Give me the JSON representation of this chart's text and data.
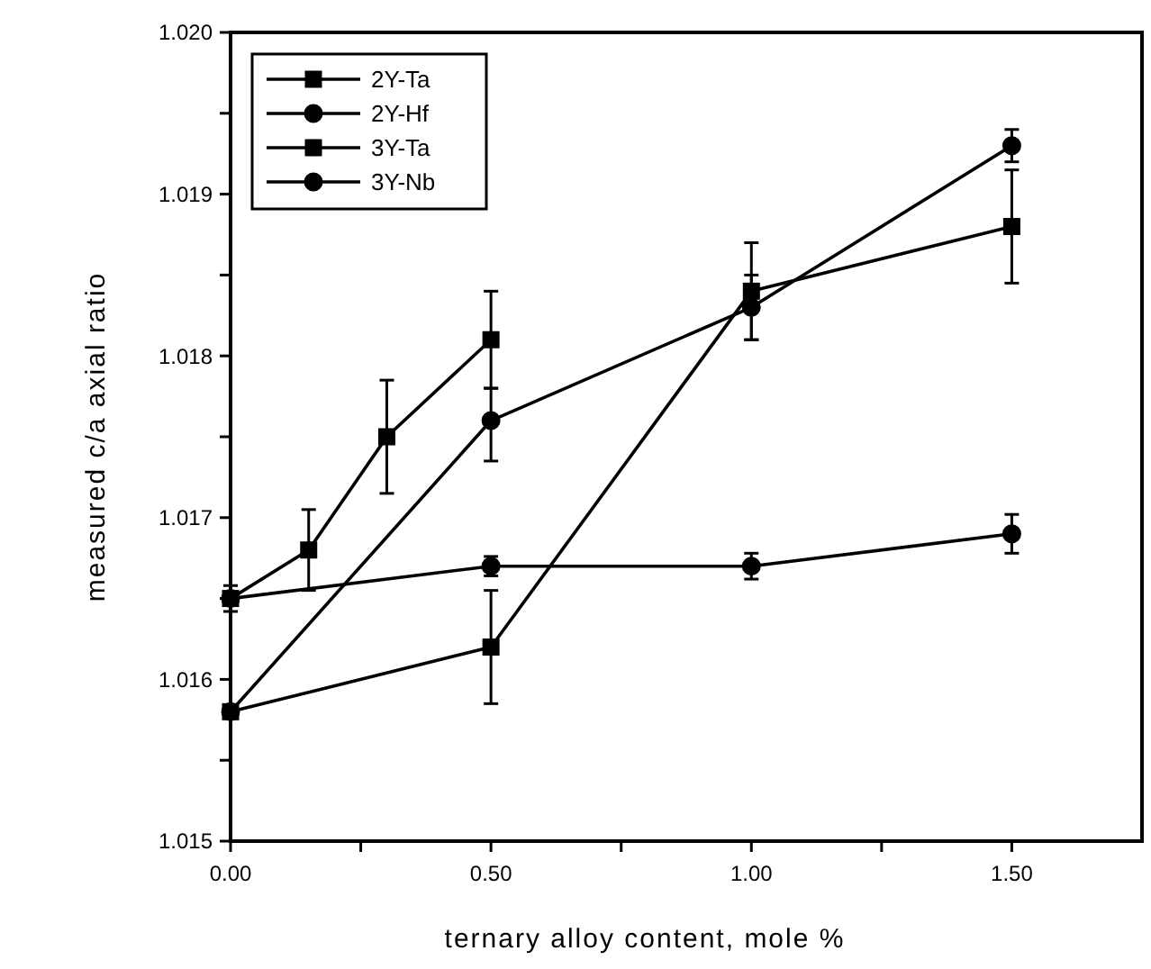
{
  "chart_data": {
    "type": "line",
    "xlabel": "ternary alloy content, mole %",
    "ylabel": "measured c/a axial ratio",
    "xlim": [
      0,
      1.75
    ],
    "ylim": [
      1.015,
      1.02
    ],
    "xticks": [
      {
        "value": 0,
        "label": "0.00"
      },
      {
        "value": 0.25,
        "label": null
      },
      {
        "value": 0.5,
        "label": "0.50"
      },
      {
        "value": 0.75,
        "label": null
      },
      {
        "value": 1,
        "label": "1.00"
      },
      {
        "value": 1.25,
        "label": null
      },
      {
        "value": 1.5,
        "label": "1.50"
      }
    ],
    "yticks": [
      {
        "value": 1.015,
        "label": "1.015"
      },
      {
        "value": 1.0155,
        "label": null
      },
      {
        "value": 1.016,
        "label": "1.016"
      },
      {
        "value": 1.0165,
        "label": null
      },
      {
        "value": 1.017,
        "label": "1.017"
      },
      {
        "value": 1.0175,
        "label": null
      },
      {
        "value": 1.018,
        "label": "1.018"
      },
      {
        "value": 1.0185,
        "label": null
      },
      {
        "value": 1.019,
        "label": "1.019"
      },
      {
        "value": 1.0195,
        "label": null
      },
      {
        "value": 1.02,
        "label": "1.020"
      }
    ],
    "grid": false,
    "legend": "top left",
    "line_style": "solid",
    "series": [
      {
        "name": "2Y-Ta",
        "color": "#000000",
        "marker": "square",
        "x": [
          0,
          0.15,
          0.3,
          0.5
        ],
        "values": [
          1.0165,
          1.0168,
          1.0175,
          1.0181
        ],
        "errors": [
          null,
          0.00025,
          0.00035,
          0.0003
        ]
      },
      {
        "name": "2Y-Hf",
        "color": "#000000",
        "marker": "circle",
        "x": [
          0,
          0.5,
          1,
          1.5
        ],
        "values": [
          1.0165,
          1.0167,
          1.0167,
          1.0169
        ],
        "errors": [
          8e-05,
          6e-05,
          8e-05,
          0.00012
        ]
      },
      {
        "name": "3Y-Ta",
        "color": "#000000",
        "marker": "square",
        "x": [
          0,
          0.5,
          1,
          1.5
        ],
        "values": [
          1.0158,
          1.0162,
          1.0184,
          1.0188
        ],
        "errors": [
          null,
          0.00035,
          0.0003,
          [
            1.01845,
            1.01915
          ]
        ]
      },
      {
        "name": "3Y-Nb",
        "color": "#000000",
        "marker": "circle",
        "x": [
          0,
          0.5,
          1,
          1.5
        ],
        "values": [
          1.0158,
          1.0176,
          1.0183,
          1.0193
        ],
        "errors": [
          null,
          [
            1.01735,
            1.0178
          ],
          [
            1.0181,
            1.0185
          ],
          0.0001
        ]
      }
    ]
  }
}
